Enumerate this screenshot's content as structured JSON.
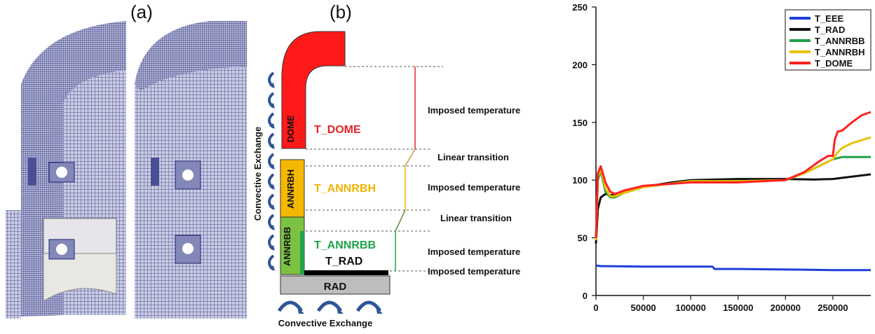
{
  "panels": {
    "a_label": "(a)",
    "b_label": "(b)"
  },
  "schematic": {
    "blocks": {
      "dome": "DOME",
      "annrbh": "ANNRBH",
      "annrbb": "ANNRBB",
      "rad": "RAD"
    },
    "temps": {
      "dome": "T_DOME",
      "annrbh": "T_ANNRBH",
      "annrbb": "T_ANNRBB",
      "rad": "T_RAD"
    },
    "annotations": {
      "imposed_1": "Imposed temperature",
      "linear_1": "Linear transition",
      "imposed_2": "Imposed temperature",
      "linear_2": "Linear transition",
      "imposed_3": "Imposed temperature",
      "imposed_4": "Imposed temperature"
    },
    "convective_left": "Convective Exchange",
    "convective_bottom": "Convective Exchange",
    "colors": {
      "dome": "#ff1a1a",
      "annrbh": "#f5b800",
      "annrbb": "#7cc242",
      "annrbb_strip": "#1fa34a",
      "rad": "#bdbdbd",
      "arrow": "#2f5597"
    }
  },
  "chart_data": {
    "type": "line",
    "xlim": [
      0,
      290000
    ],
    "ylim": [
      0,
      250
    ],
    "xticks": [
      0,
      50000,
      100000,
      150000,
      200000,
      250000
    ],
    "xtick_labels": [
      "0",
      "50000",
      "100000",
      "150000",
      "200000",
      "250000"
    ],
    "yticks": [
      0,
      50,
      100,
      150,
      200,
      250
    ],
    "ytick_labels": [
      "0",
      "50",
      "100",
      "150",
      "200",
      "250"
    ],
    "legend_position": "top-right",
    "grid": false,
    "series": [
      {
        "name": "T_EEE",
        "color": "#1f3fdb",
        "x": [
          0,
          5000,
          50000,
          100000,
          123000,
          125000,
          150000,
          200000,
          250000,
          290000
        ],
        "y": [
          26,
          25.5,
          25,
          25,
          25,
          23,
          23,
          22.5,
          22,
          22
        ]
      },
      {
        "name": "T_RAD",
        "color": "#111111",
        "x": [
          0,
          2000,
          5000,
          10000,
          15000,
          20000,
          30000,
          50000,
          80000,
          100000,
          150000,
          200000,
          230000,
          250000,
          270000,
          290000
        ],
        "y": [
          45,
          75,
          85,
          88,
          87,
          87,
          89,
          94,
          98,
          100,
          101,
          101,
          100.5,
          101,
          103,
          105
        ]
      },
      {
        "name": "T_ANNRBB",
        "color": "#22a04a",
        "x": [
          0,
          2000,
          5000,
          10000,
          15000,
          20000,
          30000,
          50000,
          100000,
          150000,
          200000,
          220000,
          240000,
          250000,
          260000,
          290000
        ],
        "y": [
          50,
          100,
          108,
          90,
          85,
          85,
          89,
          94,
          99,
          99,
          100,
          106,
          114,
          118,
          120,
          120
        ]
      },
      {
        "name": "T_ANNRBH",
        "color": "#e8c200",
        "x": [
          0,
          2000,
          5000,
          10000,
          15000,
          20000,
          30000,
          50000,
          100000,
          150000,
          200000,
          220000,
          240000,
          250000,
          255000,
          260000,
          270000,
          290000
        ],
        "y": [
          48,
          103,
          110,
          93,
          86,
          86,
          89,
          94,
          99,
          99,
          100,
          106,
          114,
          118,
          124,
          128,
          132,
          137
        ]
      },
      {
        "name": "T_DOME",
        "color": "#ff2020",
        "x": [
          0,
          2000,
          5000,
          10000,
          15000,
          20000,
          30000,
          50000,
          100000,
          150000,
          200000,
          220000,
          235000,
          245000,
          250000,
          252000,
          255000,
          260000,
          270000,
          280000,
          290000
        ],
        "y": [
          50,
          106,
          112,
          98,
          90,
          88,
          91,
          95,
          98,
          98,
          100,
          107,
          116,
          121,
          121,
          135,
          142,
          143,
          150,
          156,
          159
        ]
      }
    ]
  }
}
